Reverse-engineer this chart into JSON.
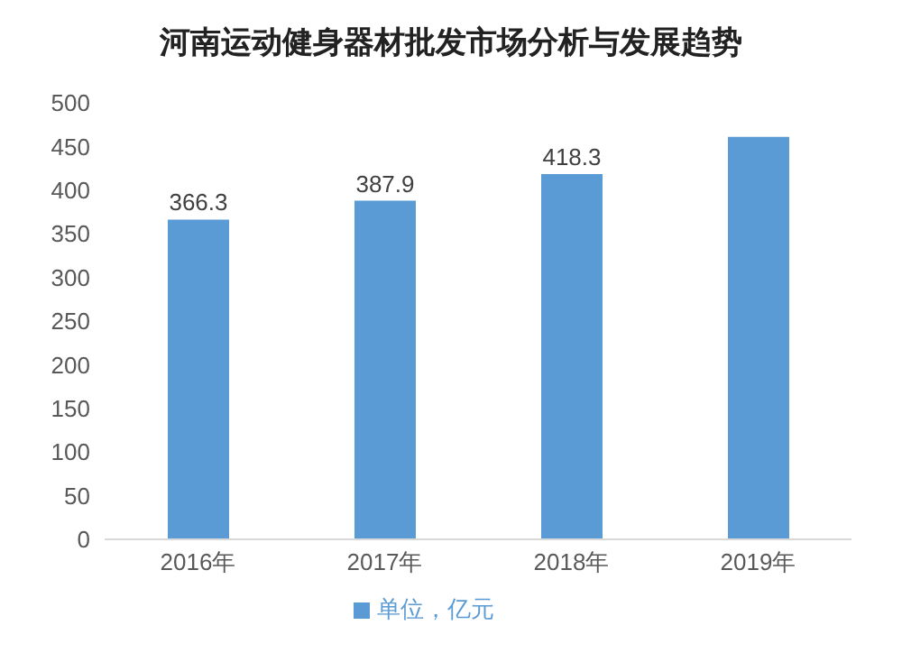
{
  "chart_data": {
    "type": "bar",
    "title": "河南运动健身器材批发市场分析与发展趋势",
    "categories": [
      "2016年",
      "2017年",
      "2018年",
      "2019年"
    ],
    "series": [
      {
        "name": "单位，亿元",
        "color": "#5b9bd5",
        "values": [
          366.3,
          387.9,
          418.3,
          461
        ],
        "value_labels": [
          "366.3",
          "387.9",
          "418.3",
          null
        ]
      }
    ],
    "ylim": [
      0,
      500
    ],
    "yticks": [
      0,
      50,
      100,
      150,
      200,
      250,
      300,
      350,
      400,
      450,
      500
    ],
    "legend": "bottom"
  }
}
